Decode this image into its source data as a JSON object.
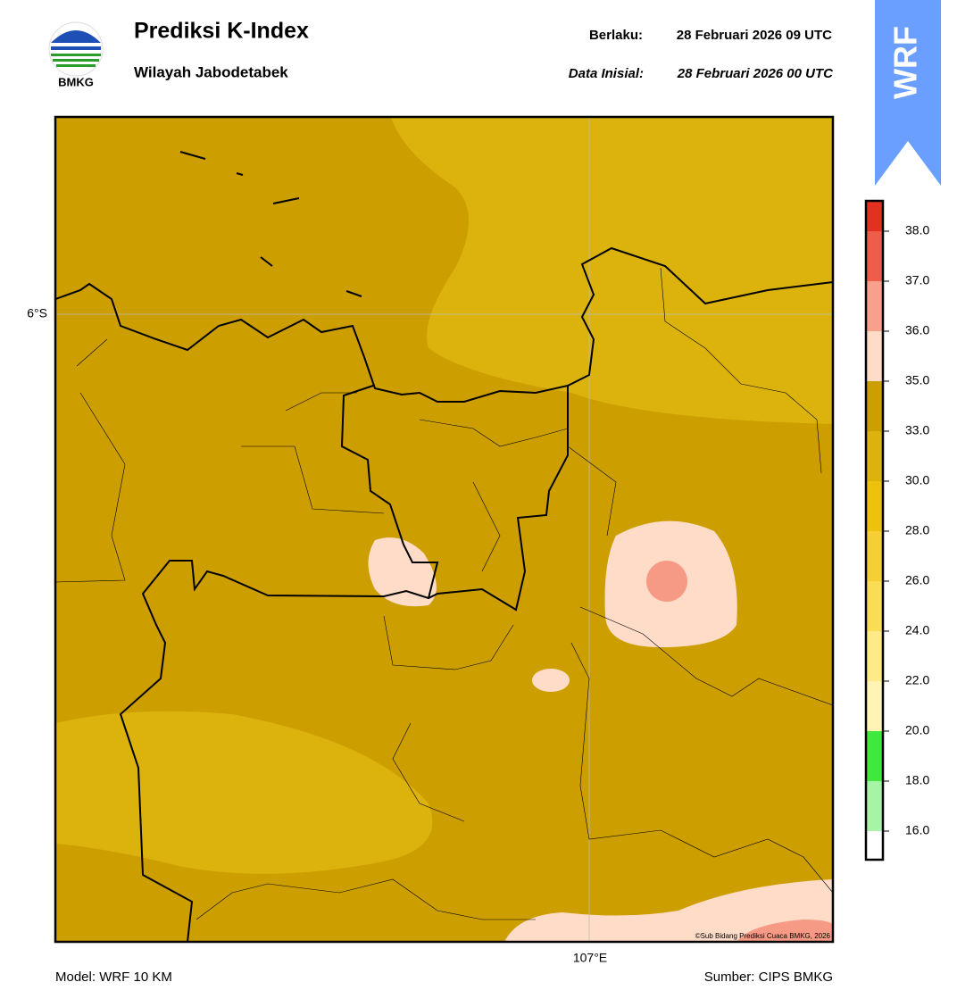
{
  "header": {
    "logo_text": "BMKG",
    "title": "Prediksi K-Index",
    "subtitle": "Wilayah Jabodetabek",
    "valid_label": "Berlaku:",
    "valid_time": "28 Februari 2026 09 UTC",
    "init_label": "Data Inisial:",
    "init_time": "28 Februari 2026 00 UTC",
    "badge": "WRF"
  },
  "map": {
    "lat_label": "6°S",
    "lon_label": "107°E",
    "credit": "©Sub Bidang Prediksi Cuaca BMKG, 2026"
  },
  "colorbar": {
    "ticks": [
      {
        "value": 16,
        "label": "16.0"
      },
      {
        "value": 18,
        "label": "18.0"
      },
      {
        "value": 20,
        "label": "20.0"
      },
      {
        "value": 22,
        "label": "22.0"
      },
      {
        "value": 24,
        "label": "24.0"
      },
      {
        "value": 26,
        "label": "26.0"
      },
      {
        "value": 28,
        "label": "28.0"
      },
      {
        "value": 30,
        "label": "30.0"
      },
      {
        "value": 33,
        "label": "33.0"
      },
      {
        "value": 35,
        "label": "35.0"
      },
      {
        "value": 36,
        "label": "36.0"
      },
      {
        "value": 37,
        "label": "37.0"
      },
      {
        "value": 38,
        "label": "38.0"
      }
    ],
    "colors": [
      "#ffffff",
      "#a6f5a6",
      "#3ee83e",
      "#fff4b4",
      "#ffea8a",
      "#fbdc55",
      "#f5cf33",
      "#eec20c",
      "#dbb30c",
      "#cc9e00",
      "#ffdcc8",
      "#f8a08c",
      "#ee5c4a",
      "#e2321f"
    ]
  },
  "footer": {
    "model": "Model: WRF 10 KM",
    "source": "Sumber: CIPS BMKG"
  }
}
